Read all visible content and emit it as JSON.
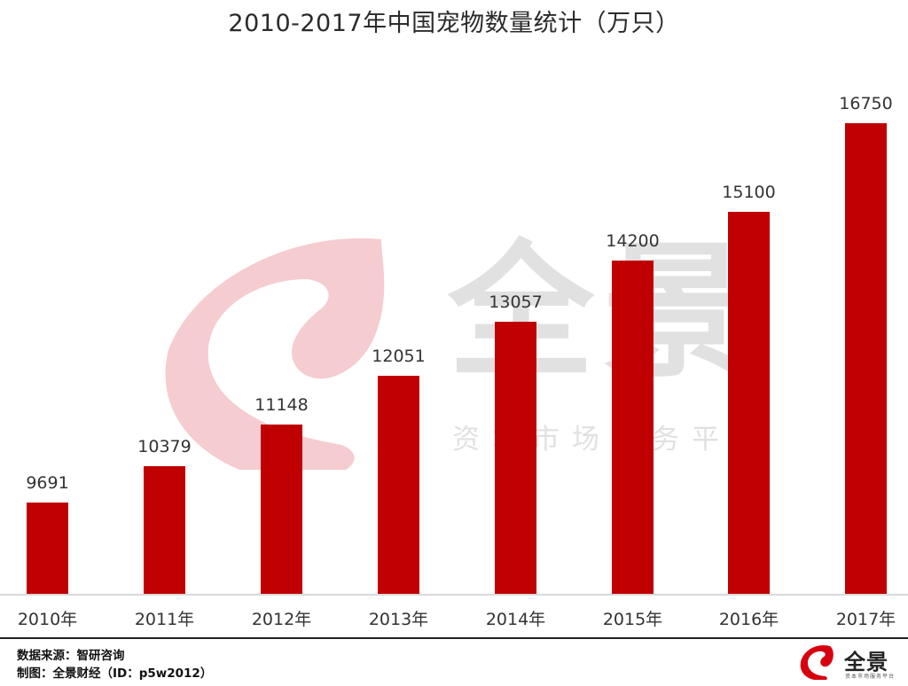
{
  "title": "2010-2017年中国宠物数量统计（万只）",
  "watermark": {
    "brand": "全景",
    "tagline": "资本市场服务平台"
  },
  "footer": {
    "source": "数据来源：智研咨询",
    "credit": "制图：全景财经（ID：p5w2012）",
    "logo_text": "全景",
    "logo_sub": "资本市场服务平台"
  },
  "colors": {
    "bar": "#c00000",
    "baseline": "#d9d9d9",
    "watermark_red": "#f4c7cb",
    "watermark_gray": "#c8c8c8"
  },
  "chart_data": {
    "type": "bar",
    "title": "2010-2017年中国宠物数量统计（万只）",
    "xlabel": "",
    "ylabel": "",
    "categories": [
      "2010年",
      "2011年",
      "2012年",
      "2013年",
      "2014年",
      "2015年",
      "2016年",
      "2017年"
    ],
    "values": [
      9691,
      10379,
      11148,
      12051,
      13057,
      14200,
      15100,
      16750
    ],
    "value_labels": [
      "9691",
      "10379",
      "11148",
      "12051",
      "13057",
      "14200",
      "15100",
      "16750"
    ],
    "unit": "万只",
    "ylim": [
      8000,
      17500
    ],
    "grid": false,
    "legend": "none",
    "data_labels": true
  }
}
